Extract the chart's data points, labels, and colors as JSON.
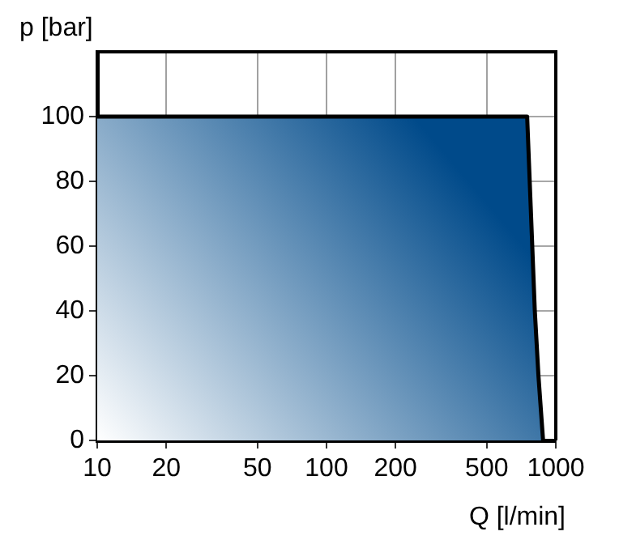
{
  "chart_data": {
    "type": "area",
    "xlabel": "Q [l/min]",
    "ylabel": "p [bar]",
    "log": "x",
    "series": [
      {
        "color": "#004a8a",
        "x": [
          10,
          750,
          810,
          840,
          880
        ],
        "values": [
          100,
          100,
          40,
          20,
          0
        ]
      }
    ],
    "xlim": [
      10,
      1000
    ],
    "xticks": [
      10,
      20,
      50,
      100,
      200,
      500,
      1000
    ],
    "ylim": [
      0,
      120
    ],
    "yticks": [
      0,
      20,
      40,
      60,
      80,
      100
    ],
    "grid": true,
    "legend": false
  }
}
